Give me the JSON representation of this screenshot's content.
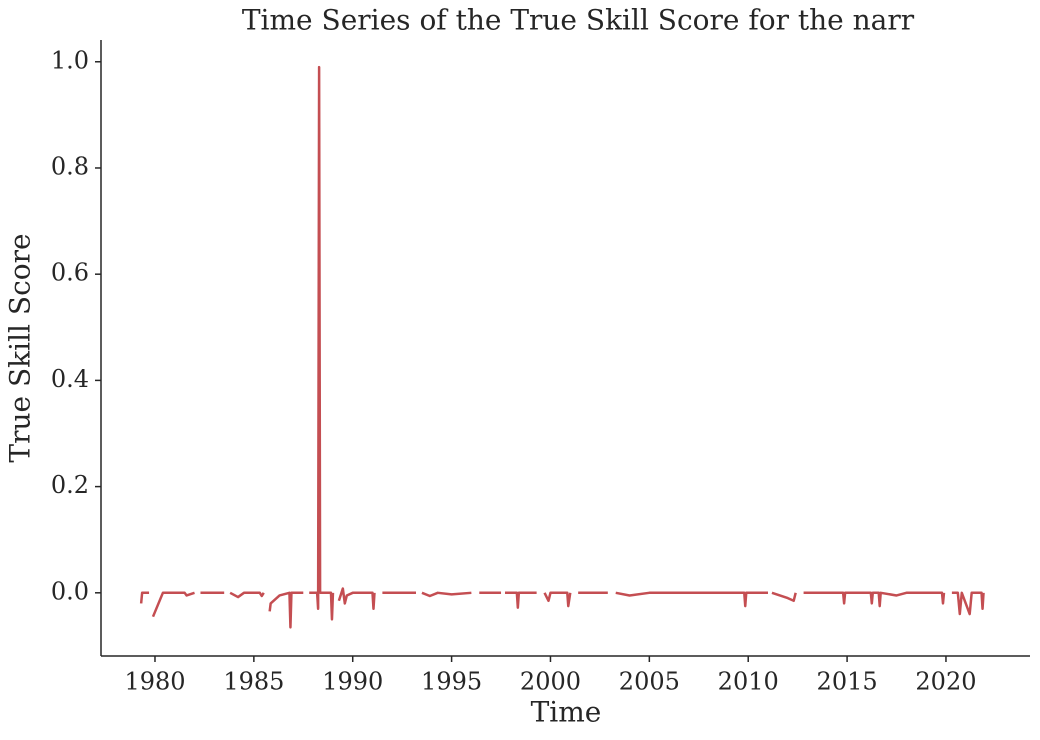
{
  "chart_data": {
    "type": "line",
    "title": "Time Series of the True Skill Score for the narr",
    "xlabel": "Time",
    "ylabel": "True Skill Score",
    "color": "#c44e52",
    "xlim": [
      1977.27,
      2024.25
    ],
    "xticks": [
      1980,
      1985,
      1990,
      1995,
      2000,
      2005,
      2010,
      2015,
      2020
    ],
    "ylim": [
      -0.119,
      1.041
    ],
    "yticks": [
      {
        "value": 0,
        "label": "0.0"
      },
      0.2,
      0.4,
      0.6,
      0.8,
      {
        "value": 1,
        "label": "1.0"
      }
    ],
    "grid": false,
    "x": [
      1979.3,
      1979.35,
      1979.7,
      null,
      1979.9,
      1980.4,
      1981.5,
      1981.6,
      1982,
      null,
      1982.3,
      1983.5,
      null,
      1983.8,
      1984.2,
      1984.5,
      1985.3,
      1985.4,
      1985.5,
      null,
      1985.8,
      1985.85,
      1986.3,
      1986.8,
      1986.85,
      1986.9,
      1987.5,
      null,
      1987.8,
      1988.2,
      1988.25,
      1988.3,
      1988.35,
      1988.9,
      1988.95,
      1989,
      null,
      1989.3,
      1989.5,
      1989.6,
      1989.7,
      1990,
      1991,
      1991.05,
      1991.1,
      null,
      1991.5,
      1993.2,
      null,
      1993.5,
      1993.9,
      1994.3,
      1995,
      1996,
      null,
      1996.4,
      1997.5,
      null,
      1997.7,
      1998.3,
      1998.35,
      1998.4,
      1999.3,
      null,
      1999.7,
      1999.9,
      2000,
      2000.85,
      2000.9,
      2001,
      null,
      2001.4,
      2002.9,
      null,
      2003.3,
      2004,
      2005,
      2008,
      2009.8,
      2009.85,
      2009.9,
      2011,
      null,
      2011.2,
      2012,
      2012.3,
      2012.4,
      null,
      2012.8,
      2014.8,
      2014.85,
      2014.9,
      2016.2,
      2016.25,
      2016.3,
      2016.6,
      2016.65,
      2016.7,
      2017.5,
      2018,
      2019.8,
      2019.85,
      2019.9,
      null,
      2020.3,
      2020.6,
      2020.7,
      2020.8,
      2021.1,
      2021.2,
      2021.3,
      2021.8,
      2021.85,
      2021.9
    ],
    "values": [
      -0.02,
      0,
      0,
      null,
      -0.045,
      0,
      0,
      -0.005,
      0,
      null,
      0,
      0,
      null,
      0,
      -0.008,
      0,
      0,
      -0.006,
      0,
      null,
      -0.035,
      -0.02,
      -0.005,
      0,
      -0.065,
      0,
      0,
      null,
      0,
      0,
      -0.03,
      0.99,
      0,
      0,
      -0.05,
      0,
      null,
      -0.015,
      0.008,
      -0.02,
      -0.005,
      0,
      0,
      -0.03,
      0,
      null,
      0,
      0,
      null,
      0,
      -0.006,
      0,
      -0.003,
      0,
      null,
      0,
      0,
      null,
      0,
      0,
      -0.028,
      0,
      0,
      null,
      0,
      -0.015,
      0,
      0,
      -0.025,
      0,
      null,
      0,
      0,
      null,
      0,
      -0.005,
      0,
      0,
      0,
      -0.025,
      0,
      0,
      null,
      0,
      -0.01,
      -0.015,
      0,
      null,
      0,
      0,
      -0.02,
      0,
      0,
      -0.02,
      0,
      0,
      -0.025,
      0,
      -0.005,
      0,
      0,
      -0.02,
      0,
      null,
      0,
      0,
      -0.04,
      0,
      -0.03,
      -0.04,
      0,
      0,
      -0.03,
      0
    ]
  }
}
